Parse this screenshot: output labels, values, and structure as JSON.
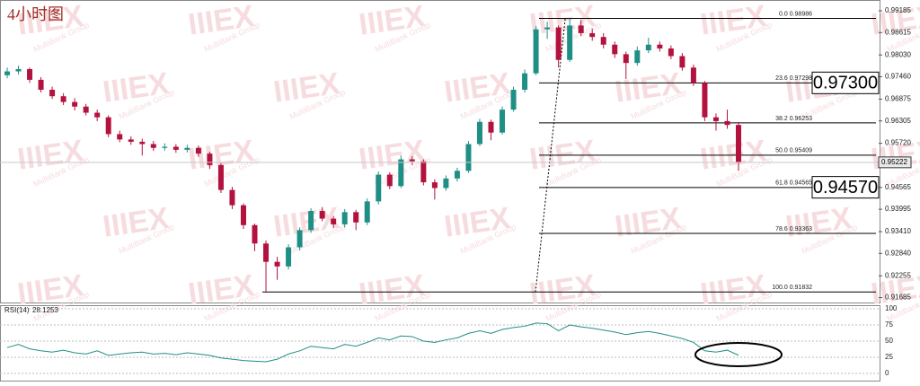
{
  "chart_data": {
    "type": "candlestick",
    "title": "4小时图",
    "watermark": {
      "logo": "IIIEX",
      "tagline": "MultiBank Group"
    },
    "up_color": "#1f8f86",
    "down_color": "#b3123e",
    "ylim": [
      0.9158,
      0.9942
    ],
    "yticks": [
      0.99185,
      0.98615,
      {
        "value": 0.9803,
        "label": "0.98030"
      },
      {
        "value": 0.9746,
        "label": "0.97460"
      },
      0.96875,
      0.96305,
      {
        "value": 0.9572,
        "label": "0.95720"
      },
      0.94565,
      0.93995,
      {
        "value": 0.9341,
        "label": "0.93410"
      },
      {
        "value": 0.9284,
        "label": "0.92840"
      },
      0.92255,
      0.91685
    ],
    "current_price": 0.95222,
    "open": [
      0.975,
      0.976,
      0.9766,
      0.9738,
      0.9712,
      0.9695,
      0.968,
      0.9668,
      0.9652,
      0.964,
      0.9596,
      0.9582,
      0.9576,
      0.957,
      0.956,
      0.9563,
      0.9555,
      0.956,
      0.9545,
      0.9515,
      0.945,
      0.941,
      0.9358,
      0.931,
      0.9262,
      0.925,
      0.93,
      0.9345,
      0.9395,
      0.9375,
      0.936,
      0.9392,
      0.9365,
      0.942,
      0.949,
      0.946,
      0.953,
      0.9525,
      0.947,
      0.9455,
      0.948,
      0.95,
      0.957,
      0.9628,
      0.96,
      0.966,
      0.9712,
      0.9755,
      0.987,
      0.9875,
      0.979,
      0.988,
      0.986,
      0.985,
      0.983,
      0.9805,
      0.9782,
      0.9815,
      0.983,
      0.982,
      0.98,
      0.977,
      0.973,
      0.964,
      0.963,
      0.962
    ],
    "high": [
      0.977,
      0.9775,
      0.977,
      0.9745,
      0.972,
      0.9703,
      0.969,
      0.9675,
      0.966,
      0.9645,
      0.9605,
      0.959,
      0.9584,
      0.9578,
      0.9572,
      0.957,
      0.9568,
      0.9566,
      0.955,
      0.952,
      0.9458,
      0.9415,
      0.9362,
      0.9318,
      0.9275,
      0.9308,
      0.9352,
      0.9402,
      0.9405,
      0.9382,
      0.94,
      0.9398,
      0.9428,
      0.9498,
      0.9496,
      0.954,
      0.9538,
      0.953,
      0.9478,
      0.9488,
      0.9508,
      0.9578,
      0.9636,
      0.9634,
      0.9668,
      0.972,
      0.9765,
      0.9878,
      0.989,
      0.988,
      0.98986,
      0.9895,
      0.9872,
      0.986,
      0.9838,
      0.9812,
      0.9825,
      0.9848,
      0.9838,
      0.9828,
      0.9808,
      0.9778,
      0.9735,
      0.965,
      0.966,
      0.9628
    ],
    "low": [
      0.9742,
      0.9752,
      0.973,
      0.9705,
      0.9688,
      0.9672,
      0.9658,
      0.9645,
      0.963,
      0.9588,
      0.9575,
      0.9568,
      0.954,
      0.9552,
      0.9553,
      0.9547,
      0.9548,
      0.9537,
      0.9505,
      0.9442,
      0.94,
      0.9348,
      0.929,
      0.91832,
      0.9215,
      0.9242,
      0.9292,
      0.9338,
      0.9368,
      0.935,
      0.9352,
      0.9345,
      0.9358,
      0.9412,
      0.9452,
      0.9455,
      0.9515,
      0.9462,
      0.9425,
      0.9448,
      0.9472,
      0.9495,
      0.9565,
      0.958,
      0.9595,
      0.9655,
      0.9705,
      0.975,
      0.9845,
      0.977,
      0.9785,
      0.9852,
      0.984,
      0.982,
      0.9795,
      0.974,
      0.9775,
      0.9808,
      0.9812,
      0.9792,
      0.9762,
      0.9722,
      0.963,
      0.9605,
      0.961,
      0.95
    ],
    "close": [
      0.976,
      0.9766,
      0.9738,
      0.9712,
      0.9695,
      0.968,
      0.9668,
      0.9652,
      0.964,
      0.9596,
      0.9582,
      0.9576,
      0.957,
      0.956,
      0.9563,
      0.9555,
      0.956,
      0.9545,
      0.9515,
      0.945,
      0.941,
      0.9358,
      0.931,
      0.9262,
      0.925,
      0.93,
      0.9345,
      0.9395,
      0.9375,
      0.936,
      0.9392,
      0.9365,
      0.942,
      0.949,
      0.946,
      0.953,
      0.9525,
      0.947,
      0.9455,
      0.948,
      0.95,
      0.957,
      0.9628,
      0.96,
      0.966,
      0.9712,
      0.9755,
      0.987,
      0.9875,
      0.979,
      0.988,
      0.986,
      0.985,
      0.983,
      0.9805,
      0.9782,
      0.9815,
      0.983,
      0.982,
      0.98,
      0.977,
      0.973,
      0.964,
      0.963,
      0.962,
      0.95222
    ],
    "fib_levels": [
      {
        "label": "0.0  0.98986",
        "value": 0.98986
      },
      {
        "label": "23.6  0.97298",
        "value": 0.97298
      },
      {
        "label": "38.2  0.96253",
        "value": 0.96253
      },
      {
        "label": "50.0  0.95409",
        "value": 0.95409
      },
      {
        "label": "61.8  0.94565",
        "value": 0.94565
      },
      {
        "label": "78.6  0.93363",
        "value": 0.93363
      },
      {
        "label": "100.0  0.91832",
        "value": 0.91832
      }
    ],
    "annotations": [
      {
        "value": 0.973,
        "label": "0.97300"
      },
      {
        "value": 0.9457,
        "label": "0.94570"
      }
    ],
    "rsi": {
      "label": "RSI(14)",
      "color": "#1f8f86",
      "ylim": [
        0,
        100
      ],
      "yticks": [
        0,
        25,
        50,
        75,
        100
      ],
      "values": [
        40,
        45,
        38,
        35,
        33,
        36,
        32,
        30,
        35,
        28,
        30,
        32,
        33,
        30,
        31,
        29,
        32,
        30,
        28,
        24,
        22,
        20,
        19,
        18,
        22,
        30,
        35,
        42,
        40,
        38,
        45,
        42,
        48,
        55,
        52,
        58,
        57,
        50,
        48,
        52,
        55,
        62,
        66,
        62,
        68,
        71,
        73,
        78,
        77,
        66,
        75,
        72,
        70,
        67,
        64,
        60,
        63,
        65,
        62,
        58,
        54,
        48,
        35,
        33,
        36,
        28.1253
      ]
    }
  }
}
